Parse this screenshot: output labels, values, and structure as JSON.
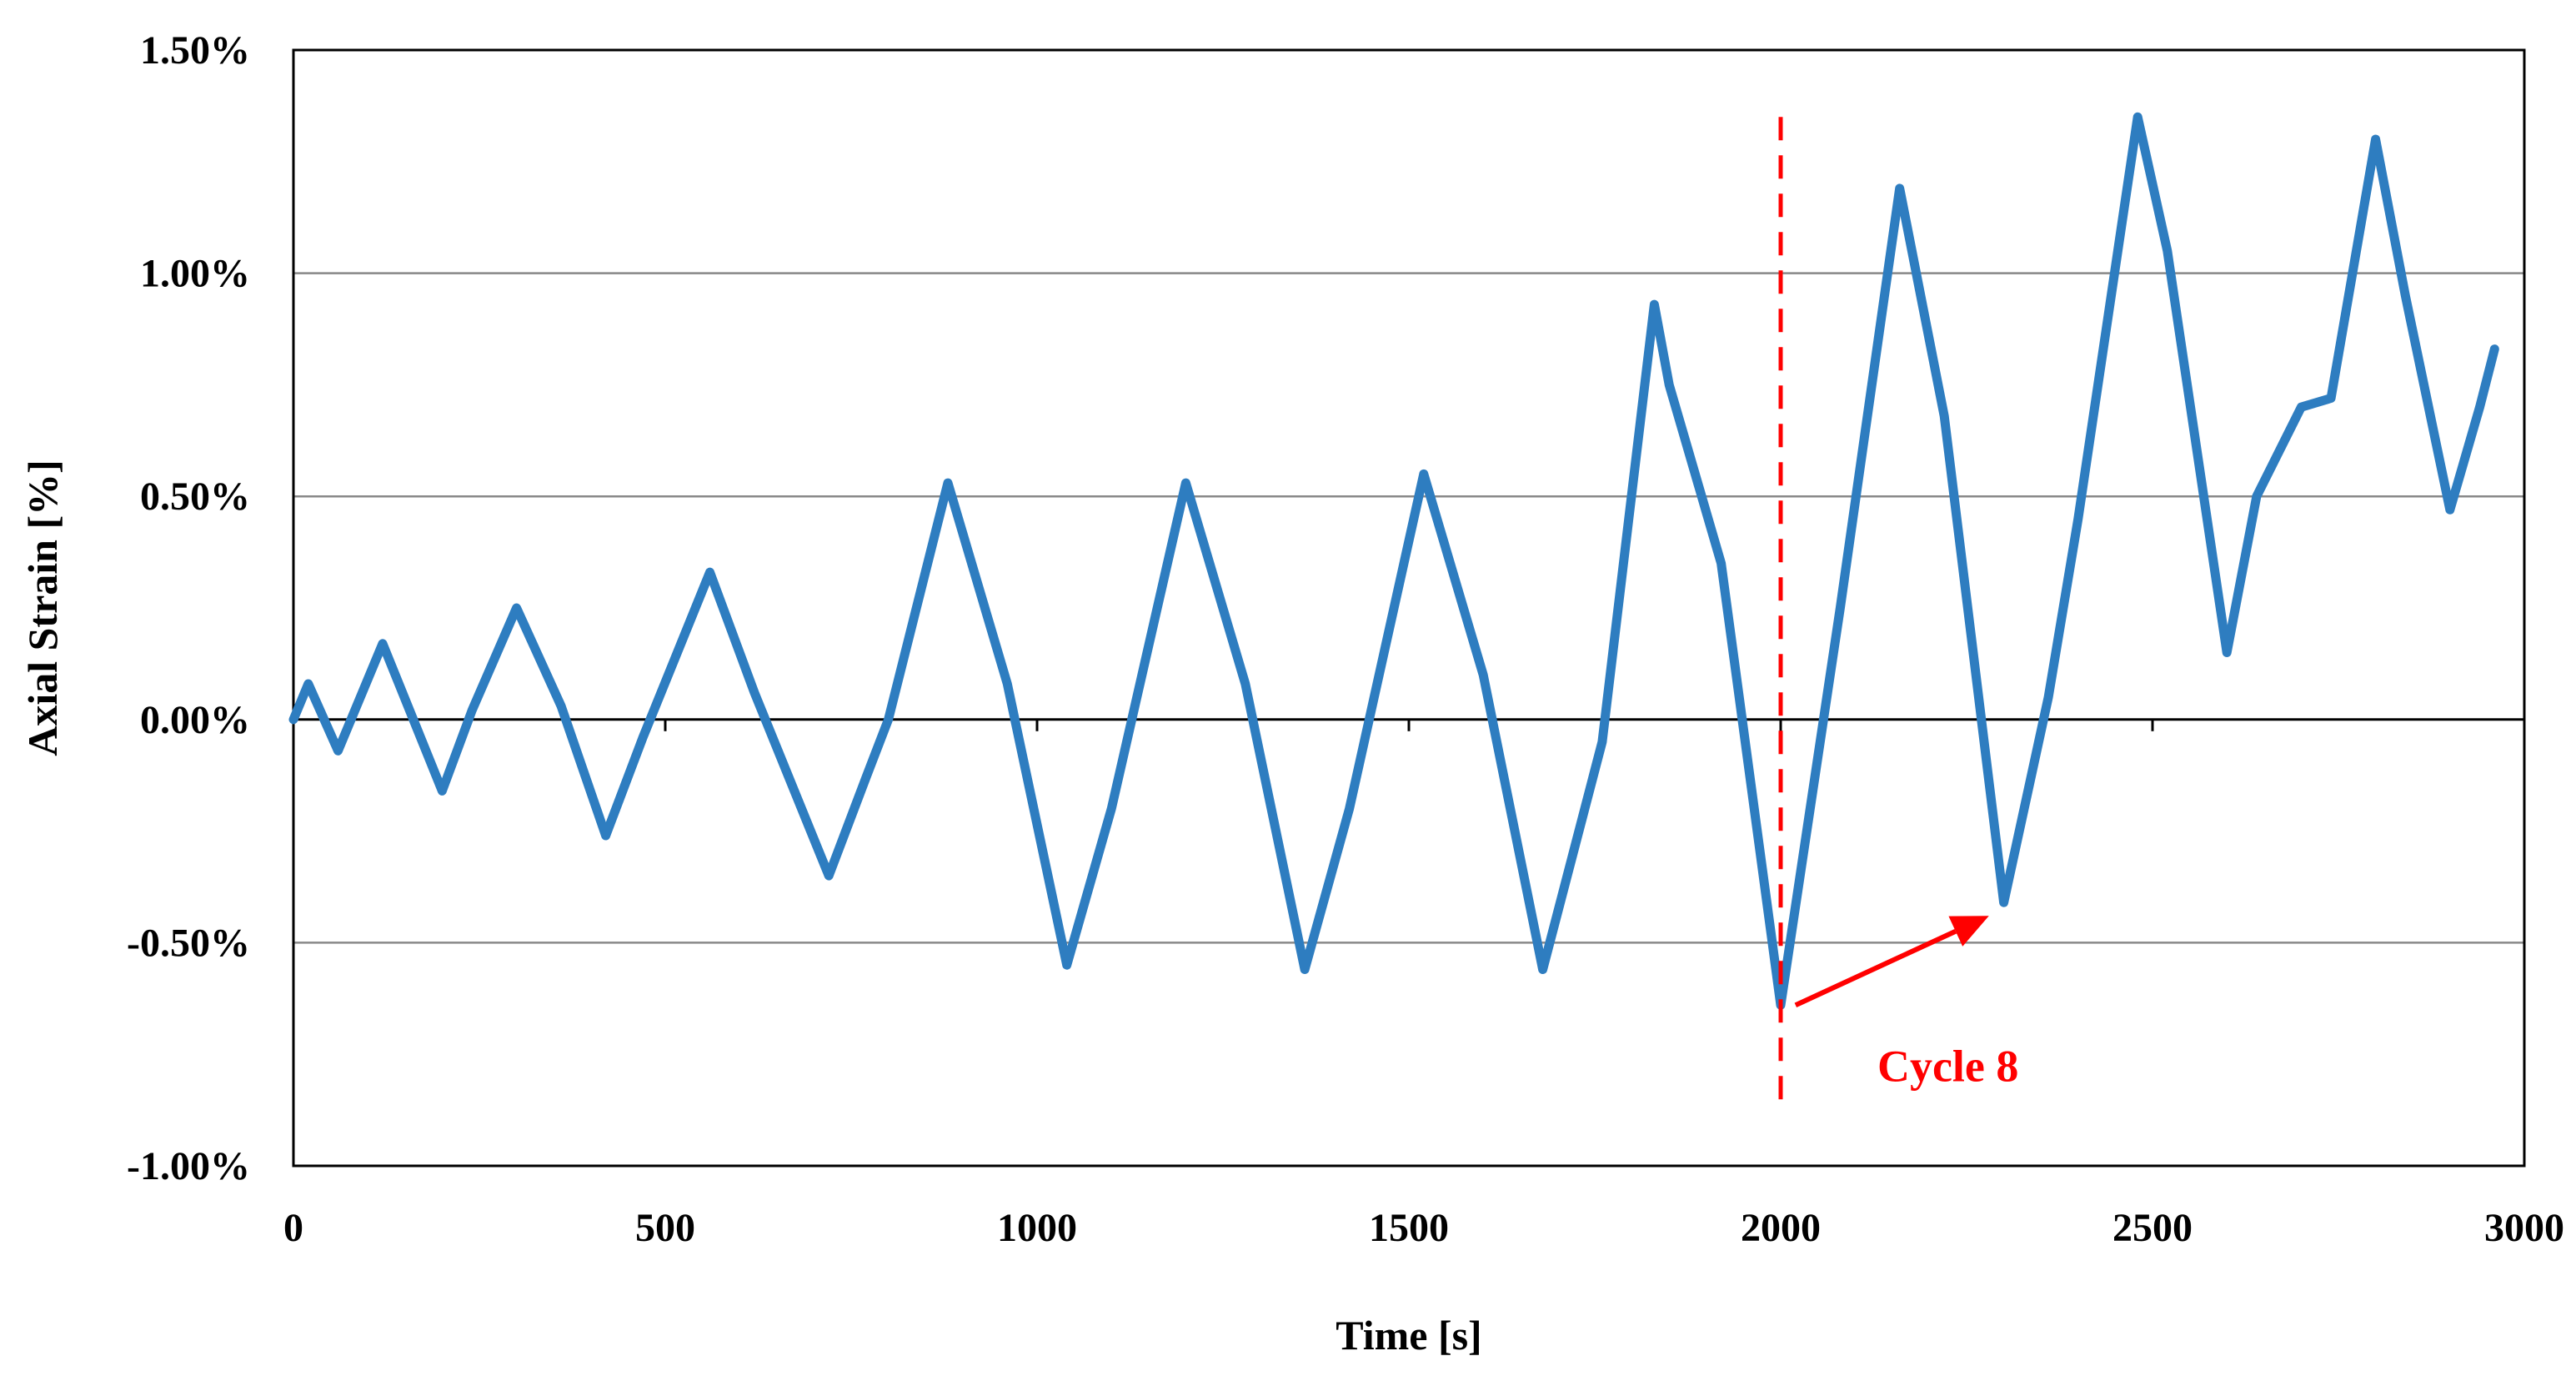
{
  "chart_data": {
    "type": "line",
    "title": "",
    "xlabel": "Time [s]",
    "ylabel": "Axial Strain [%]",
    "xlim": [
      0,
      3000
    ],
    "ylim": [
      -1.0,
      1.5
    ],
    "x_ticks": [
      0,
      500,
      1000,
      1500,
      2000,
      2500,
      3000
    ],
    "x_tick_labels": [
      "0",
      "500",
      "1000",
      "1500",
      "2000",
      "2500",
      "3000"
    ],
    "y_ticks": [
      -1.0,
      -0.5,
      0.0,
      0.5,
      1.0,
      1.5
    ],
    "y_tick_labels": [
      "-1.00%",
      "-0.50%",
      "0.00%",
      "0.50%",
      "1.00%",
      "1.50%"
    ],
    "grid": "horizontal",
    "legend": "none",
    "colors": {
      "series": "#2E7DC0",
      "annotation": "#FF0000",
      "grid": "#888888",
      "axis": "#000000"
    },
    "series": [
      {
        "name": "Axial Strain",
        "x": [
          0,
          20,
          60,
          120,
          200,
          240,
          300,
          360,
          420,
          470,
          560,
          620,
          720,
          770,
          800,
          880,
          960,
          1040,
          1100,
          1200,
          1280,
          1360,
          1420,
          1520,
          1600,
          1680,
          1760,
          1830,
          1850,
          1920,
          2000,
          2080,
          2160,
          2220,
          2300,
          2360,
          2400,
          2480,
          2520,
          2600,
          2640,
          2700,
          2740,
          2800,
          2840,
          2900,
          2940,
          2960
        ],
        "y": [
          0.0,
          0.08,
          -0.07,
          0.17,
          -0.16,
          0.02,
          0.25,
          0.03,
          -0.26,
          -0.04,
          0.33,
          0.06,
          -0.35,
          -0.13,
          0.0,
          0.53,
          0.08,
          -0.55,
          -0.2,
          0.53,
          0.08,
          -0.56,
          -0.2,
          0.55,
          0.1,
          -0.56,
          -0.05,
          0.93,
          0.75,
          0.35,
          -0.64,
          0.25,
          1.19,
          0.68,
          -0.41,
          0.05,
          0.45,
          1.35,
          1.05,
          0.15,
          0.5,
          0.7,
          0.72,
          1.3,
          0.95,
          0.47,
          0.7,
          0.83
        ]
      }
    ],
    "annotations": {
      "cycle_label": "Cycle 8",
      "cycle_line_x": 2000,
      "arrow_from": [
        2020,
        -0.64
      ],
      "arrow_to": [
        2280,
        -0.44
      ]
    }
  }
}
